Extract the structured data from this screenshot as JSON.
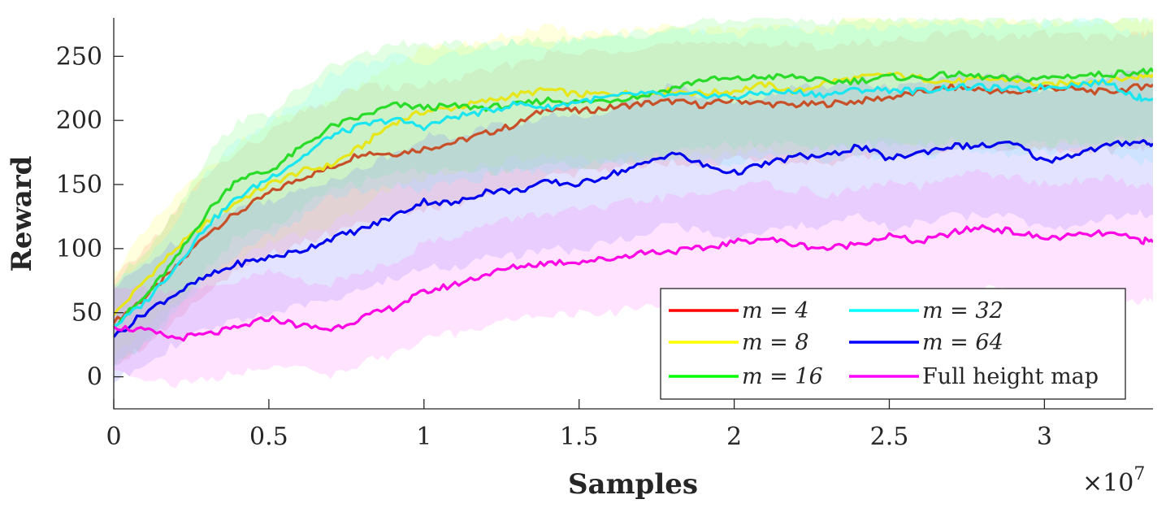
{
  "chart_data": {
    "type": "line",
    "title": "",
    "xlabel": "Samples",
    "ylabel": "Reward",
    "x_multiplier_label": "×10",
    "x_multiplier_exponent": "7",
    "xlim": [
      0,
      3.35
    ],
    "ylim": [
      -25,
      280
    ],
    "xticks": [
      0,
      0.5,
      1,
      1.5,
      2,
      2.5,
      3
    ],
    "xtick_labels": [
      "0",
      "0.5",
      "1",
      "1.5",
      "2",
      "2.5",
      "3"
    ],
    "yticks": [
      0,
      50,
      100,
      150,
      200,
      250
    ],
    "ytick_labels": [
      "0",
      "50",
      "100",
      "150",
      "200",
      "250"
    ],
    "legend_position": "bottom-right",
    "x": [
      0,
      0.1,
      0.2,
      0.3,
      0.4,
      0.5,
      0.6,
      0.7,
      0.8,
      0.9,
      1.0,
      1.1,
      1.2,
      1.3,
      1.4,
      1.5,
      1.6,
      1.7,
      1.8,
      1.9,
      2.0,
      2.1,
      2.2,
      2.3,
      2.4,
      2.5,
      2.6,
      2.7,
      2.8,
      2.9,
      3.0,
      3.1,
      3.2,
      3.3,
      3.35
    ],
    "series": [
      {
        "name": "m = 4",
        "math": "m = 4",
        "color": "#ff0000",
        "mean_color": "#c85028",
        "band_color": "#ff8080",
        "mean": [
          42,
          62,
          85,
          112,
          128,
          143,
          155,
          163,
          175,
          174,
          178,
          183,
          190,
          197,
          210,
          207,
          210,
          213,
          215,
          212,
          216,
          213,
          212,
          213,
          215,
          218,
          222,
          226,
          224,
          221,
          226,
          224,
          222,
          226,
          228
        ],
        "lower": [
          10,
          25,
          45,
          68,
          82,
          95,
          105,
          112,
          122,
          125,
          130,
          135,
          142,
          148,
          158,
          158,
          162,
          166,
          168,
          166,
          170,
          168,
          168,
          168,
          170,
          172,
          175,
          178,
          177,
          175,
          178,
          177,
          176,
          178,
          180
        ],
        "upper": [
          75,
          100,
          128,
          158,
          175,
          190,
          205,
          215,
          228,
          225,
          228,
          232,
          238,
          245,
          252,
          252,
          255,
          258,
          260,
          258,
          262,
          260,
          258,
          258,
          260,
          262,
          265,
          268,
          266,
          265,
          268,
          266,
          265,
          268,
          270
        ]
      },
      {
        "name": "m = 8",
        "math": "m = 8",
        "color": "#ffff00",
        "mean_color": "#e6e619",
        "band_color": "#ffff66",
        "mean": [
          48,
          75,
          100,
          120,
          137,
          150,
          160,
          165,
          180,
          198,
          207,
          210,
          215,
          220,
          224,
          220,
          221,
          221,
          223,
          221,
          223,
          228,
          222,
          230,
          233,
          236,
          233,
          230,
          232,
          232,
          227,
          230,
          231,
          234,
          236
        ],
        "lower": [
          15,
          38,
          60,
          78,
          92,
          104,
          112,
          118,
          132,
          148,
          156,
          160,
          165,
          170,
          174,
          170,
          172,
          172,
          174,
          172,
          174,
          178,
          173,
          180,
          182,
          185,
          182,
          180,
          182,
          182,
          178,
          180,
          180,
          182,
          184
        ],
        "upper": [
          82,
          112,
          140,
          162,
          182,
          196,
          208,
          212,
          228,
          245,
          255,
          258,
          262,
          268,
          272,
          268,
          270,
          270,
          272,
          270,
          272,
          275,
          270,
          276,
          278,
          280,
          278,
          276,
          278,
          278,
          274,
          276,
          277,
          278,
          278
        ]
      },
      {
        "name": "m = 16",
        "math": "m = 16",
        "color": "#00ff00",
        "mean_color": "#28dc28",
        "band_color": "#80ff80",
        "mean": [
          40,
          62,
          92,
          128,
          155,
          160,
          178,
          195,
          203,
          212,
          210,
          211,
          210,
          212,
          216,
          214,
          216,
          219,
          225,
          232,
          232,
          234,
          234,
          230,
          231,
          234,
          233,
          236,
          234,
          232,
          233,
          235,
          236,
          238,
          238
        ],
        "lower": [
          8,
          28,
          55,
          85,
          110,
          115,
          130,
          145,
          152,
          160,
          160,
          161,
          160,
          162,
          166,
          164,
          166,
          169,
          175,
          180,
          180,
          182,
          182,
          178,
          180,
          182,
          181,
          184,
          182,
          180,
          181,
          183,
          184,
          186,
          186
        ],
        "upper": [
          72,
          98,
          130,
          172,
          200,
          205,
          224,
          242,
          250,
          260,
          258,
          259,
          258,
          260,
          264,
          262,
          264,
          267,
          272,
          278,
          278,
          280,
          280,
          276,
          278,
          280,
          279,
          280,
          280,
          278,
          279,
          280,
          280,
          280,
          280
        ]
      },
      {
        "name": "m = 32",
        "math": "m = 32",
        "color": "#00ffff",
        "mean_color": "#19e6f0",
        "band_color": "#80ffff",
        "mean": [
          39,
          58,
          86,
          118,
          140,
          155,
          170,
          188,
          196,
          201,
          195,
          203,
          207,
          213,
          210,
          215,
          218,
          221,
          219,
          220,
          218,
          222,
          222,
          220,
          224,
          224,
          223,
          226,
          226,
          224,
          226,
          228,
          230,
          218,
          217
        ],
        "lower": [
          8,
          25,
          50,
          78,
          96,
          110,
          124,
          140,
          146,
          150,
          145,
          152,
          156,
          162,
          160,
          164,
          167,
          170,
          168,
          169,
          167,
          171,
          171,
          169,
          173,
          173,
          172,
          175,
          175,
          173,
          175,
          177,
          178,
          168,
          167
        ],
        "upper": [
          70,
          92,
          122,
          160,
          185,
          200,
          216,
          235,
          245,
          250,
          244,
          252,
          256,
          262,
          259,
          264,
          266,
          269,
          268,
          269,
          267,
          271,
          271,
          269,
          273,
          273,
          272,
          275,
          275,
          273,
          275,
          277,
          278,
          267,
          266
        ]
      },
      {
        "name": "m = 64",
        "math": "m = 64",
        "color": "#0000ff",
        "mean_color": "#0000f0",
        "band_color": "#8080ff",
        "mean": [
          31,
          50,
          65,
          78,
          88,
          93,
          98,
          108,
          115,
          125,
          137,
          135,
          145,
          145,
          152,
          150,
          158,
          165,
          175,
          165,
          159,
          166,
          172,
          172,
          180,
          170,
          175,
          180,
          180,
          182,
          168,
          174,
          180,
          184,
          182
        ],
        "lower": [
          -5,
          12,
          25,
          36,
          45,
          50,
          54,
          62,
          68,
          76,
          86,
          85,
          94,
          94,
          100,
          98,
          105,
          112,
          120,
          112,
          106,
          112,
          118,
          118,
          125,
          116,
          120,
          125,
          125,
          127,
          114,
          120,
          125,
          128,
          126
        ],
        "upper": [
          68,
          88,
          105,
          120,
          132,
          138,
          144,
          155,
          162,
          174,
          188,
          186,
          196,
          196,
          204,
          202,
          210,
          218,
          228,
          218,
          212,
          220,
          226,
          226,
          234,
          224,
          228,
          234,
          234,
          236,
          222,
          228,
          234,
          238,
          236
        ]
      },
      {
        "name": "Full height map",
        "math": "",
        "color": "#ff00ff",
        "mean_color": "#ff00e6",
        "band_color": "#ff80ff",
        "mean": [
          39,
          36,
          30,
          33,
          38,
          46,
          40,
          37,
          46,
          54,
          66,
          72,
          80,
          86,
          89,
          90,
          92,
          97,
          98,
          100,
          105,
          108,
          103,
          100,
          104,
          110,
          105,
          112,
          117,
          113,
          108,
          110,
          112,
          107,
          105
        ],
        "lower": [
          5,
          0,
          -6,
          -2,
          2,
          10,
          5,
          2,
          10,
          18,
          28,
          34,
          40,
          46,
          48,
          49,
          50,
          54,
          55,
          56,
          60,
          62,
          58,
          55,
          58,
          64,
          58,
          65,
          70,
          66,
          62,
          64,
          66,
          60,
          58
        ],
        "upper": [
          72,
          70,
          66,
          68,
          74,
          82,
          76,
          72,
          82,
          90,
          104,
          110,
          118,
          124,
          128,
          130,
          132,
          138,
          140,
          142,
          148,
          150,
          146,
          142,
          146,
          152,
          148,
          155,
          160,
          155,
          150,
          152,
          155,
          150,
          148
        ]
      }
    ]
  }
}
